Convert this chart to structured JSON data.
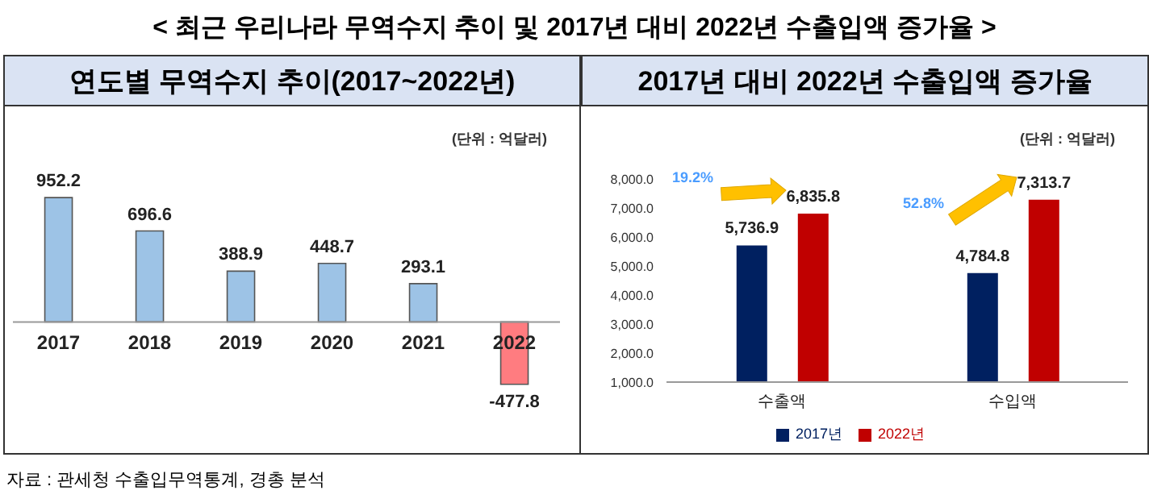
{
  "chart_data": [
    {
      "type": "bar",
      "title": "연도별 무역수지 추이(2017~2022년)",
      "categories": [
        "2017",
        "2018",
        "2019",
        "2020",
        "2021",
        "2022"
      ],
      "values": [
        952.2,
        696.6,
        388.9,
        448.7,
        293.1,
        -477.8
      ],
      "colors": [
        "#9dc3e6",
        "#9dc3e6",
        "#9dc3e6",
        "#9dc3e6",
        "#9dc3e6",
        "#ff7c80"
      ],
      "data_labels": true,
      "tick_labels": "x",
      "annotations": [
        "< 최근 우리나라 무역수지 추이 및 2017년 대비 2022년 수출입액 증가율 >",
        "(단위 : 억달러)",
        "자료 : 관세청 수출입무역통계, 경총 분석"
      ]
    },
    {
      "type": "bar",
      "title": "2017년 대비 2022년 수출입액 증가율",
      "categories": [
        "수출액",
        "수입액"
      ],
      "series": [
        {
          "name": "2017년",
          "color": "#002060",
          "values": [
            5736.9,
            4784.8
          ],
          "value_labels": [
            "5,736.9",
            "4,784.8"
          ]
        },
        {
          "name": "2022년",
          "color": "#c00000",
          "values": [
            6835.8,
            7313.7
          ],
          "value_labels": [
            "6,835.8",
            "7,313.7"
          ]
        }
      ],
      "ylim": [
        1000,
        8000
      ],
      "yticks": [
        {
          "value": 1000,
          "label": "1,000.0"
        },
        {
          "value": 2000,
          "label": "2,000.0"
        },
        {
          "value": 3000,
          "label": "3,000.0"
        },
        {
          "value": 4000,
          "label": "4,000.0"
        },
        {
          "value": 5000,
          "label": "5,000.0"
        },
        {
          "value": 6000,
          "label": "6,000.0"
        },
        {
          "value": 7000,
          "label": "7,000.0"
        },
        {
          "value": 8000,
          "label": "8,000.0"
        }
      ],
      "grid": false,
      "legend": "bottom",
      "annotations": [
        "(단위 : 억달러)",
        "19.2%",
        "52.8%"
      ]
    }
  ]
}
